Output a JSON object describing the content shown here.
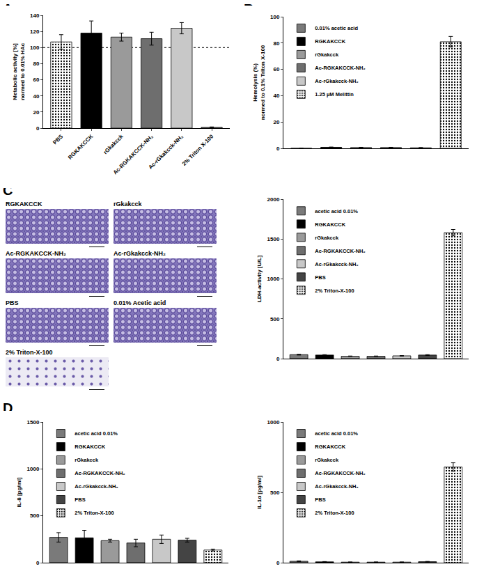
{
  "panel_labels": [
    "A",
    "B",
    "C",
    "D"
  ],
  "micrographs": {
    "captions": [
      "RGKAKCCK",
      "rGkakcck",
      "Ac-RGKAKCCK-NH₂",
      "Ac-rGkakcck-NH₂",
      "PBS",
      "0.01% Acetic acid",
      "2% Triton-X-100"
    ]
  },
  "chart_data": [
    {
      "type": "bar",
      "ylabel": "Metabolic activity [%]\nnormed to 0.01% HAc",
      "ylim": [
        0,
        140
      ],
      "yticks": [
        0,
        20,
        40,
        60,
        80,
        100,
        120,
        140
      ],
      "hline": 100,
      "tick_labels": true,
      "series": [
        {
          "name": "PBS",
          "color": "#ffffff",
          "marker": "dotted",
          "values": [
            107
          ],
          "errors": [
            9
          ]
        },
        {
          "name": "RGKAKCCK",
          "color": "#000000",
          "values": [
            118
          ],
          "errors": [
            15
          ]
        },
        {
          "name": "rGkakcck",
          "color": "#9a9a9a",
          "values": [
            113
          ],
          "errors": [
            5
          ]
        },
        {
          "name": "Ac-RGKAKCCK-NH₂",
          "color": "#6e6e6e",
          "values": [
            111
          ],
          "errors": [
            8
          ]
        },
        {
          "name": "Ac-rGkakcck-NH₂",
          "color": "#c8c8c8",
          "values": [
            124
          ],
          "errors": [
            7
          ]
        },
        {
          "name": "2% Triton X-100",
          "color": "#a0a0a0",
          "values": [
            1
          ],
          "errors": [
            0.5
          ]
        }
      ]
    },
    {
      "type": "bar",
      "ylabel": "Hemolysis (%)\nnormed to 0.1% Triton X-100",
      "ylim": [
        0,
        100
      ],
      "yticks": [
        0,
        20,
        40,
        60,
        80,
        100
      ],
      "legend": "top left",
      "tick_labels": "y",
      "series": [
        {
          "name": "0.01% acetic acid",
          "color": "#7a7a7a",
          "values": [
            0
          ],
          "errors": [
            0
          ]
        },
        {
          "name": "RGKAKCCK",
          "color": "#000000",
          "values": [
            0.8
          ],
          "errors": [
            0.2
          ]
        },
        {
          "name": "rGkakcck",
          "color": "#9a9a9a",
          "values": [
            0.6
          ],
          "errors": [
            0.2
          ]
        },
        {
          "name": "Ac-RGKAKCCK-NH₂",
          "color": "#6e6e6e",
          "values": [
            0.6
          ],
          "errors": [
            0.2
          ]
        },
        {
          "name": "Ac-rGkakcck-NH₂",
          "color": "#c8c8c8",
          "values": [
            0.4
          ],
          "errors": [
            0.2
          ]
        },
        {
          "name": "1.25 µM Melittin",
          "color": "#ffffff",
          "marker": "dotted",
          "values": [
            81
          ],
          "errors": [
            4
          ]
        }
      ]
    },
    {
      "type": "bar",
      "ylabel": "LDH-activity [U/L]",
      "ylim": [
        0,
        2000
      ],
      "yticks": [
        0,
        500,
        1000,
        1500,
        2000
      ],
      "legend": "top left",
      "tick_labels": "y",
      "series": [
        {
          "name": "acetic acid 0.01%",
          "color": "#7a7a7a",
          "values": [
            50
          ],
          "errors": [
            5
          ]
        },
        {
          "name": "RGKAKCCK",
          "color": "#000000",
          "values": [
            45
          ],
          "errors": [
            5
          ]
        },
        {
          "name": "rGkakcck",
          "color": "#9a9a9a",
          "values": [
            30
          ],
          "errors": [
            3
          ]
        },
        {
          "name": "Ac-RGKAKCCK-NH₂",
          "color": "#6e6e6e",
          "values": [
            30
          ],
          "errors": [
            3
          ]
        },
        {
          "name": "Ac-rGkakcck-NH₂",
          "color": "#c8c8c8",
          "values": [
            35
          ],
          "errors": [
            3
          ]
        },
        {
          "name": "PBS",
          "color": "#444444",
          "values": [
            45
          ],
          "errors": [
            5
          ]
        },
        {
          "name": "2% Triton-X-100",
          "color": "#ffffff",
          "marker": "dotted",
          "values": [
            1580
          ],
          "errors": [
            40
          ]
        }
      ]
    },
    {
      "type": "bar",
      "ylabel": "IL-8 [pg/ml]",
      "ylim": [
        0,
        1500
      ],
      "yticks": [
        0,
        500,
        1000,
        1500
      ],
      "legend": "top left",
      "tick_labels": "y",
      "series": [
        {
          "name": "acetic acid 0.01%",
          "color": "#7a7a7a",
          "values": [
            270
          ],
          "errors": [
            50
          ]
        },
        {
          "name": "RGKAKCCK",
          "color": "#000000",
          "values": [
            265
          ],
          "errors": [
            80
          ]
        },
        {
          "name": "rGkakcck",
          "color": "#9a9a9a",
          "values": [
            235
          ],
          "errors": [
            15
          ]
        },
        {
          "name": "Ac-RGKAKCCK-NH₂",
          "color": "#6e6e6e",
          "values": [
            210
          ],
          "errors": [
            40
          ]
        },
        {
          "name": "Ac-rGkakcck-NH₂",
          "color": "#c8c8c8",
          "values": [
            250
          ],
          "errors": [
            45
          ]
        },
        {
          "name": "PBS",
          "color": "#444444",
          "values": [
            240
          ],
          "errors": [
            20
          ]
        },
        {
          "name": "2% Triton-X-100",
          "color": "#ffffff",
          "marker": "dotted",
          "values": [
            135
          ],
          "errors": [
            10
          ]
        }
      ]
    },
    {
      "type": "bar",
      "ylabel": "IL-1α [pg/ml]",
      "ylim": [
        0,
        1000
      ],
      "yticks": [
        0,
        500,
        1000
      ],
      "legend": "top left",
      "tick_labels": "y",
      "series": [
        {
          "name": "acetic acid 0.01%",
          "color": "#7a7a7a",
          "values": [
            10
          ],
          "errors": [
            3
          ]
        },
        {
          "name": "RGKAKCCK",
          "color": "#000000",
          "values": [
            6
          ],
          "errors": [
            2
          ]
        },
        {
          "name": "rGkakcck",
          "color": "#9a9a9a",
          "values": [
            4
          ],
          "errors": [
            1
          ]
        },
        {
          "name": "Ac-RGKAKCCK-NH₂",
          "color": "#6e6e6e",
          "values": [
            4
          ],
          "errors": [
            1
          ]
        },
        {
          "name": "Ac-rGkakcck-NH₂",
          "color": "#c8c8c8",
          "values": [
            4
          ],
          "errors": [
            1
          ]
        },
        {
          "name": "PBS",
          "color": "#444444",
          "values": [
            7
          ],
          "errors": [
            2
          ]
        },
        {
          "name": "2% Triton-X-100",
          "color": "#ffffff",
          "marker": "dotted",
          "values": [
            680
          ],
          "errors": [
            30
          ]
        }
      ]
    }
  ]
}
